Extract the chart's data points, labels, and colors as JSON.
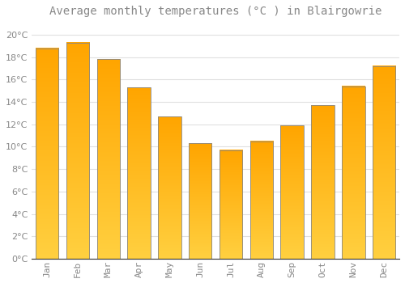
{
  "title": "Average monthly temperatures (°C ) in Blairgowrie",
  "months": [
    "Jan",
    "Feb",
    "Mar",
    "Apr",
    "May",
    "Jun",
    "Jul",
    "Aug",
    "Sep",
    "Oct",
    "Nov",
    "Dec"
  ],
  "values": [
    18.8,
    19.3,
    17.8,
    15.3,
    12.7,
    10.3,
    9.7,
    10.5,
    11.9,
    13.7,
    15.4,
    17.2
  ],
  "bar_color_top": "#FFA500",
  "bar_color_bottom": "#FFD040",
  "bar_edge_color": "#888888",
  "background_color": "#FFFFFF",
  "grid_color": "#E0E0E0",
  "text_color": "#888888",
  "ylim": [
    0,
    21
  ],
  "yticks": [
    0,
    2,
    4,
    6,
    8,
    10,
    12,
    14,
    16,
    18,
    20
  ],
  "title_fontsize": 10,
  "tick_fontsize": 8,
  "bar_width": 0.75
}
